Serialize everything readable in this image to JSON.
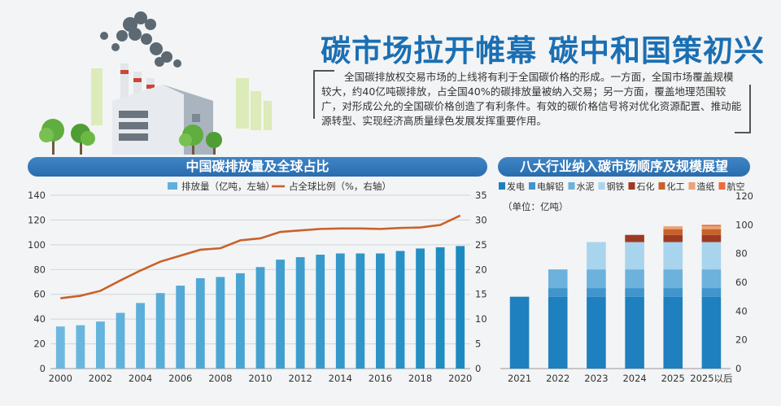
{
  "title": "碳市场拉开帷幕  碳中和国策初兴",
  "intro": "全国碳排放权交易市场的上线将有利于全国碳价格的形成。一方面，全国市场覆盖规模较大，约40亿吨碳排放，占全国40%的碳排放量被纳入交易；另一方面，覆盖地理范围较广，对形成公允的全国碳价格创造了有利条件。有效的碳价格信号将对优化资源配置、推动能源转型、实现经济高质量绿色发展发挥重要作用。",
  "colors": {
    "brand": "#1b6fb3",
    "bar": "#5fb0dc",
    "line": "#c8622a",
    "banner": "#2f78bb"
  },
  "chart_data": [
    {
      "type": "bar",
      "title": "中国碳排放量及全球占比",
      "x": [
        "2000",
        "2001",
        "2002",
        "2003",
        "2004",
        "2005",
        "2006",
        "2007",
        "2008",
        "2009",
        "2010",
        "2011",
        "2012",
        "2013",
        "2014",
        "2015",
        "2016",
        "2017",
        "2018",
        "2019",
        "2020"
      ],
      "xticks": [
        "2000",
        "2002",
        "2004",
        "2006",
        "2008",
        "2010",
        "2012",
        "2014",
        "2016",
        "2018",
        "2020"
      ],
      "series": [
        {
          "name": "排放量（亿吨，左轴）",
          "type": "bar",
          "axis": "left",
          "values": [
            34,
            35,
            38,
            45,
            53,
            61,
            67,
            73,
            74,
            77,
            82,
            88,
            90,
            92,
            93,
            93,
            93,
            95,
            97,
            98,
            99
          ]
        },
        {
          "name": "占全球比例（%，右轴）",
          "type": "line",
          "axis": "right",
          "values": [
            14.2,
            14.7,
            15.7,
            17.8,
            19.8,
            21.6,
            22.8,
            24.0,
            24.3,
            25.9,
            26.3,
            27.6,
            27.9,
            28.2,
            28.3,
            28.3,
            28.2,
            28.4,
            28.5,
            29.0,
            30.9
          ]
        }
      ],
      "ylim_left": [
        0,
        140
      ],
      "yticks_left": [
        0,
        20,
        40,
        60,
        80,
        100,
        120,
        140
      ],
      "ylim_right": [
        0,
        35
      ],
      "yticks_right": [
        0,
        5,
        10,
        15,
        20,
        25,
        30,
        35
      ],
      "grid": true,
      "legend": "top"
    },
    {
      "type": "bar",
      "stacked": true,
      "title": "八大行业纳入碳市场顺序及规模展望",
      "unit_label": "（单位：亿吨）",
      "categories": [
        "2021",
        "2022",
        "2023",
        "2024",
        "2025",
        "2025以后"
      ],
      "series": [
        {
          "name": "发电",
          "color": "#1f80bf",
          "values": [
            50,
            50,
            50,
            50,
            50,
            50
          ]
        },
        {
          "name": "电解铝",
          "color": "#3f95cc",
          "values": [
            0,
            6,
            6,
            6,
            6,
            6
          ]
        },
        {
          "name": "水泥",
          "color": "#6cb2dc",
          "values": [
            0,
            13,
            13,
            13,
            13,
            13
          ]
        },
        {
          "name": "钢铁",
          "color": "#a9d4ee",
          "values": [
            0,
            0,
            19,
            19,
            19,
            19
          ]
        },
        {
          "name": "石化",
          "color": "#9f3a22",
          "values": [
            0,
            0,
            0,
            5,
            5,
            5
          ]
        },
        {
          "name": "化工",
          "color": "#c8622a",
          "values": [
            0,
            0,
            0,
            0,
            4,
            4
          ]
        },
        {
          "name": "造纸",
          "color": "#eba276",
          "values": [
            0,
            0,
            0,
            0,
            2,
            2
          ]
        },
        {
          "name": "航空",
          "color": "#ef6a3c",
          "values": [
            0,
            0,
            0,
            0,
            0,
            1
          ]
        }
      ],
      "ylim": [
        0,
        120
      ],
      "yticks": [
        0,
        20,
        40,
        60,
        80,
        100,
        120
      ],
      "legend": "top"
    }
  ]
}
